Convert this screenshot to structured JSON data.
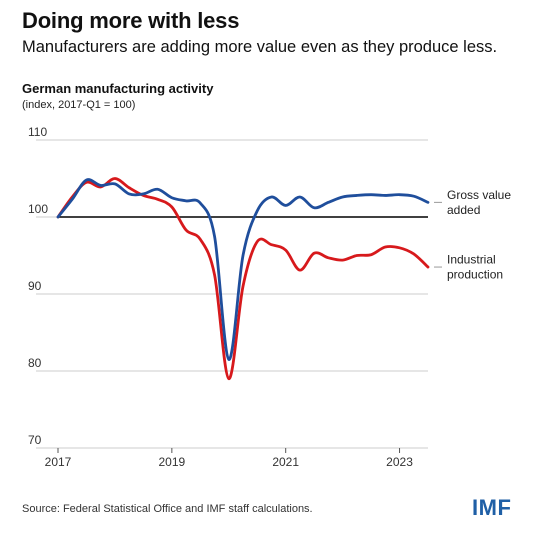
{
  "headline": "Doing more with less",
  "subheadline": "Manufacturers are adding more value even as they produce less.",
  "source": "Source: Federal Statistical Office and IMF staff calculations.",
  "logo_text": "IMF",
  "colors": {
    "gross_value_added": "#1f4e9c",
    "industrial_production": "#d7191c",
    "baseline": "#000000",
    "grid": "#cccccc"
  },
  "chart_data": {
    "type": "line",
    "title": "German manufacturing activity",
    "subtitle": "(index, 2017-Q1 = 100)",
    "xlabel": "",
    "ylabel": "",
    "xlim": [
      2017.0,
      2023.5
    ],
    "ylim": [
      70,
      110
    ],
    "yticks": [
      70,
      80,
      90,
      100,
      110
    ],
    "xticks": [
      2017,
      2019,
      2021,
      2023
    ],
    "xtick_labels": [
      "2017",
      "2019",
      "2021",
      "2023"
    ],
    "baseline": 100,
    "grid": true,
    "legend_placement": "right, at line ends",
    "series": [
      {
        "name": "Gross value added",
        "color_key": "gross_value_added",
        "legend_lines": [
          "Gross value",
          "added"
        ],
        "x": [
          2017.0,
          2017.25,
          2017.5,
          2017.75,
          2018.0,
          2018.25,
          2018.5,
          2018.75,
          2019.0,
          2019.25,
          2019.5,
          2019.75,
          2020.0,
          2020.25,
          2020.5,
          2020.75,
          2021.0,
          2021.25,
          2021.5,
          2021.75,
          2022.0,
          2022.25,
          2022.5,
          2022.75,
          2023.0,
          2023.25,
          2023.5
        ],
        "values": [
          100.0,
          102.3,
          104.8,
          104.1,
          104.3,
          103.0,
          103.0,
          103.6,
          102.5,
          102.1,
          101.8,
          97.5,
          81.5,
          95.0,
          100.8,
          102.6,
          101.5,
          102.6,
          101.2,
          101.9,
          102.6,
          102.8,
          102.9,
          102.8,
          102.9,
          102.7,
          101.9
        ]
      },
      {
        "name": "Industrial production",
        "color_key": "industrial_production",
        "legend_lines": [
          "Industrial",
          "production"
        ],
        "x": [
          2017.0,
          2017.25,
          2017.5,
          2017.75,
          2018.0,
          2018.25,
          2018.5,
          2018.75,
          2019.0,
          2019.25,
          2019.5,
          2019.75,
          2020.0,
          2020.25,
          2020.5,
          2020.75,
          2021.0,
          2021.25,
          2021.5,
          2021.75,
          2022.0,
          2022.25,
          2022.5,
          2022.75,
          2023.0,
          2023.25,
          2023.5
        ],
        "values": [
          100.0,
          102.6,
          104.5,
          103.9,
          105.0,
          103.8,
          102.8,
          102.3,
          101.3,
          98.3,
          97.1,
          92.5,
          79.0,
          91.0,
          96.8,
          96.4,
          95.7,
          93.1,
          95.3,
          94.7,
          94.4,
          95.0,
          95.1,
          96.1,
          96.0,
          95.2,
          93.5
        ]
      }
    ]
  }
}
